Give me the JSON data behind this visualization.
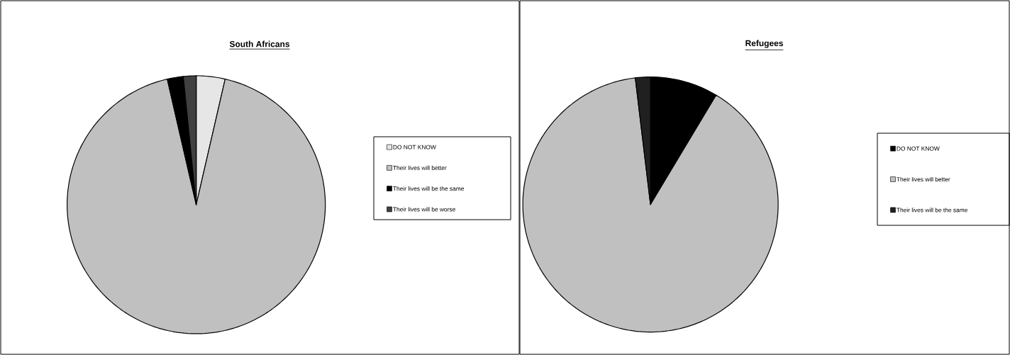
{
  "chart_data": [
    {
      "type": "pie",
      "title": "South Africans",
      "categories": [
        "DO NOT KNOW",
        "Their lives will better",
        "Their lives will be the same",
        "Their lives will be worse"
      ],
      "values": [
        3.6,
        92.8,
        2.0,
        1.6
      ],
      "colors": [
        "#e6e6e6",
        "#c0c0c0",
        "#000000",
        "#404040"
      ],
      "legend": "right"
    },
    {
      "type": "pie",
      "title": "Refugees",
      "categories": [
        "DO NOT KNOW",
        "Their lives will better",
        "Their lives will be the same"
      ],
      "values": [
        8.6,
        89.5,
        1.9
      ],
      "colors": [
        "#000000",
        "#c0c0c0",
        "#202020"
      ],
      "legend": "right"
    }
  ]
}
